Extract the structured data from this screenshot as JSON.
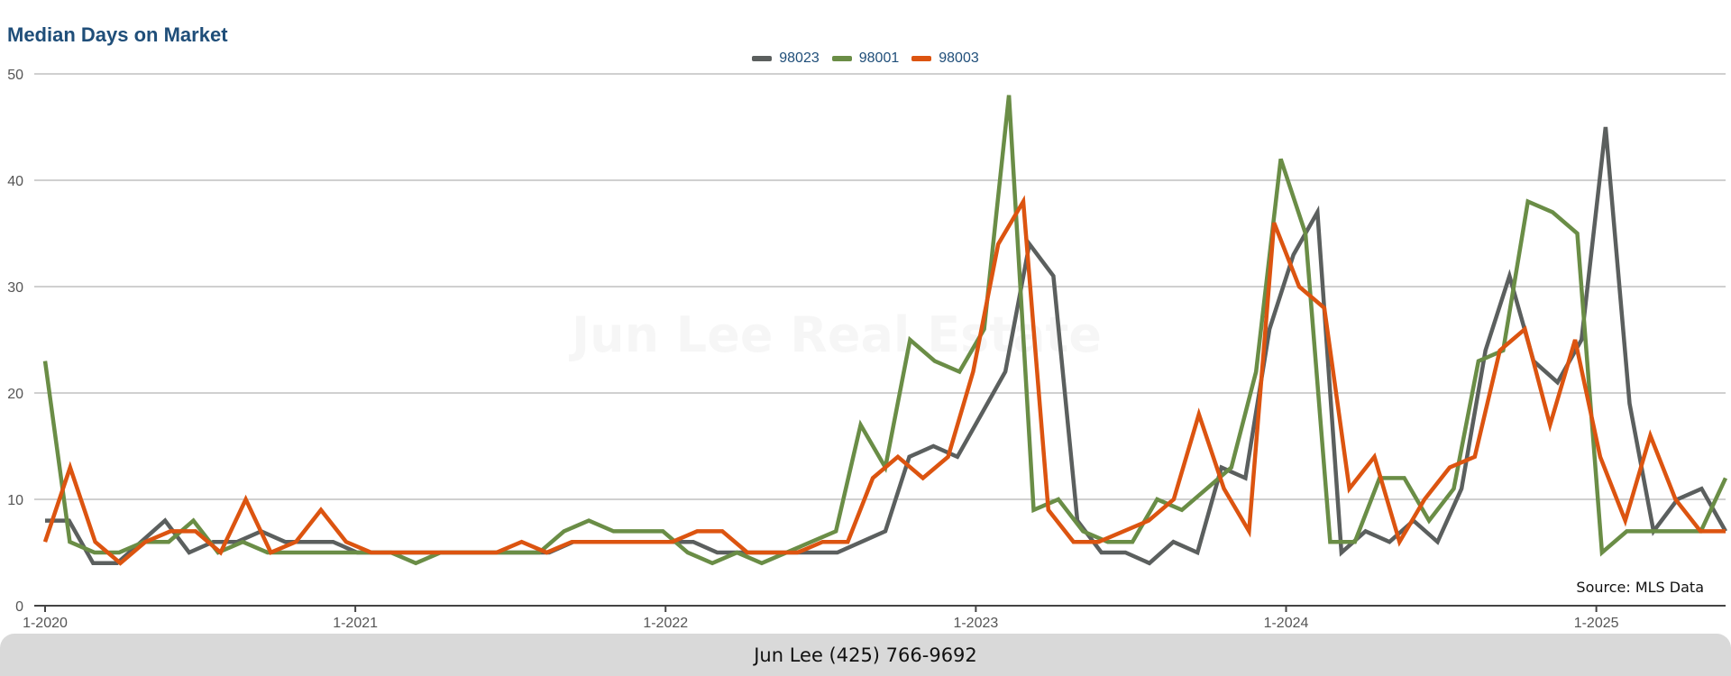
{
  "footer": {
    "contact": "Jun Lee (425) 766-9692"
  },
  "watermark": "Jun Lee Real Estate",
  "chart_data": {
    "type": "line",
    "title": "Median Days on Market",
    "source": "Source: MLS Data",
    "xlabel": "",
    "ylabel": "",
    "ylim": [
      0,
      50
    ],
    "yticks": [
      0,
      10,
      20,
      30,
      40,
      50
    ],
    "x_tick_labels": [
      "1-2020",
      "1-2021",
      "1-2022",
      "1-2023",
      "1-2024",
      "1-2025"
    ],
    "x_start": "1-2020",
    "x_end": "6-2025",
    "grid": true,
    "legend_position": "top-center",
    "series": [
      {
        "name": "98023",
        "color": "#5b5f5e",
        "values": [
          8,
          8,
          4,
          4,
          6,
          8,
          5,
          6,
          6,
          7,
          6,
          6,
          6,
          5,
          5,
          5,
          5,
          5,
          5,
          5,
          5,
          5,
          6,
          6,
          6,
          6,
          6,
          6,
          5,
          5,
          5,
          5,
          5,
          5,
          6,
          7,
          14,
          15,
          14,
          18,
          22,
          34,
          31,
          8,
          5,
          5,
          4,
          6,
          5,
          13,
          12,
          26,
          33,
          37,
          5,
          7,
          6,
          8,
          6,
          11,
          24,
          31,
          23,
          21,
          25,
          45,
          19,
          7,
          10,
          11,
          7
        ]
      },
      {
        "name": "98001",
        "color": "#6a8d46",
        "values": [
          23,
          6,
          5,
          5,
          6,
          6,
          8,
          5,
          6,
          5,
          5,
          5,
          5,
          5,
          5,
          4,
          5,
          5,
          5,
          5,
          5,
          7,
          8,
          7,
          7,
          7,
          5,
          4,
          5,
          4,
          5,
          6,
          7,
          17,
          13,
          25,
          23,
          22,
          26,
          48,
          9,
          10,
          7,
          6,
          6,
          10,
          9,
          11,
          13,
          22,
          42,
          35,
          6,
          6,
          12,
          12,
          8,
          11,
          23,
          24,
          38,
          37,
          35,
          5,
          7,
          7,
          7,
          7,
          12
        ]
      },
      {
        "name": "98003",
        "color": "#dc5410",
        "values": [
          6,
          13,
          6,
          4,
          6,
          7,
          7,
          5,
          10,
          5,
          6,
          9,
          6,
          5,
          5,
          5,
          5,
          5,
          5,
          6,
          5,
          6,
          6,
          6,
          6,
          6,
          7,
          7,
          5,
          5,
          5,
          6,
          6,
          12,
          14,
          12,
          14,
          22,
          34,
          38,
          9,
          6,
          6,
          7,
          8,
          10,
          18,
          11,
          7,
          36,
          30,
          28,
          11,
          14,
          6,
          10,
          13,
          14,
          24,
          26,
          17,
          25,
          14,
          8,
          16,
          10,
          7,
          7
        ]
      }
    ]
  }
}
